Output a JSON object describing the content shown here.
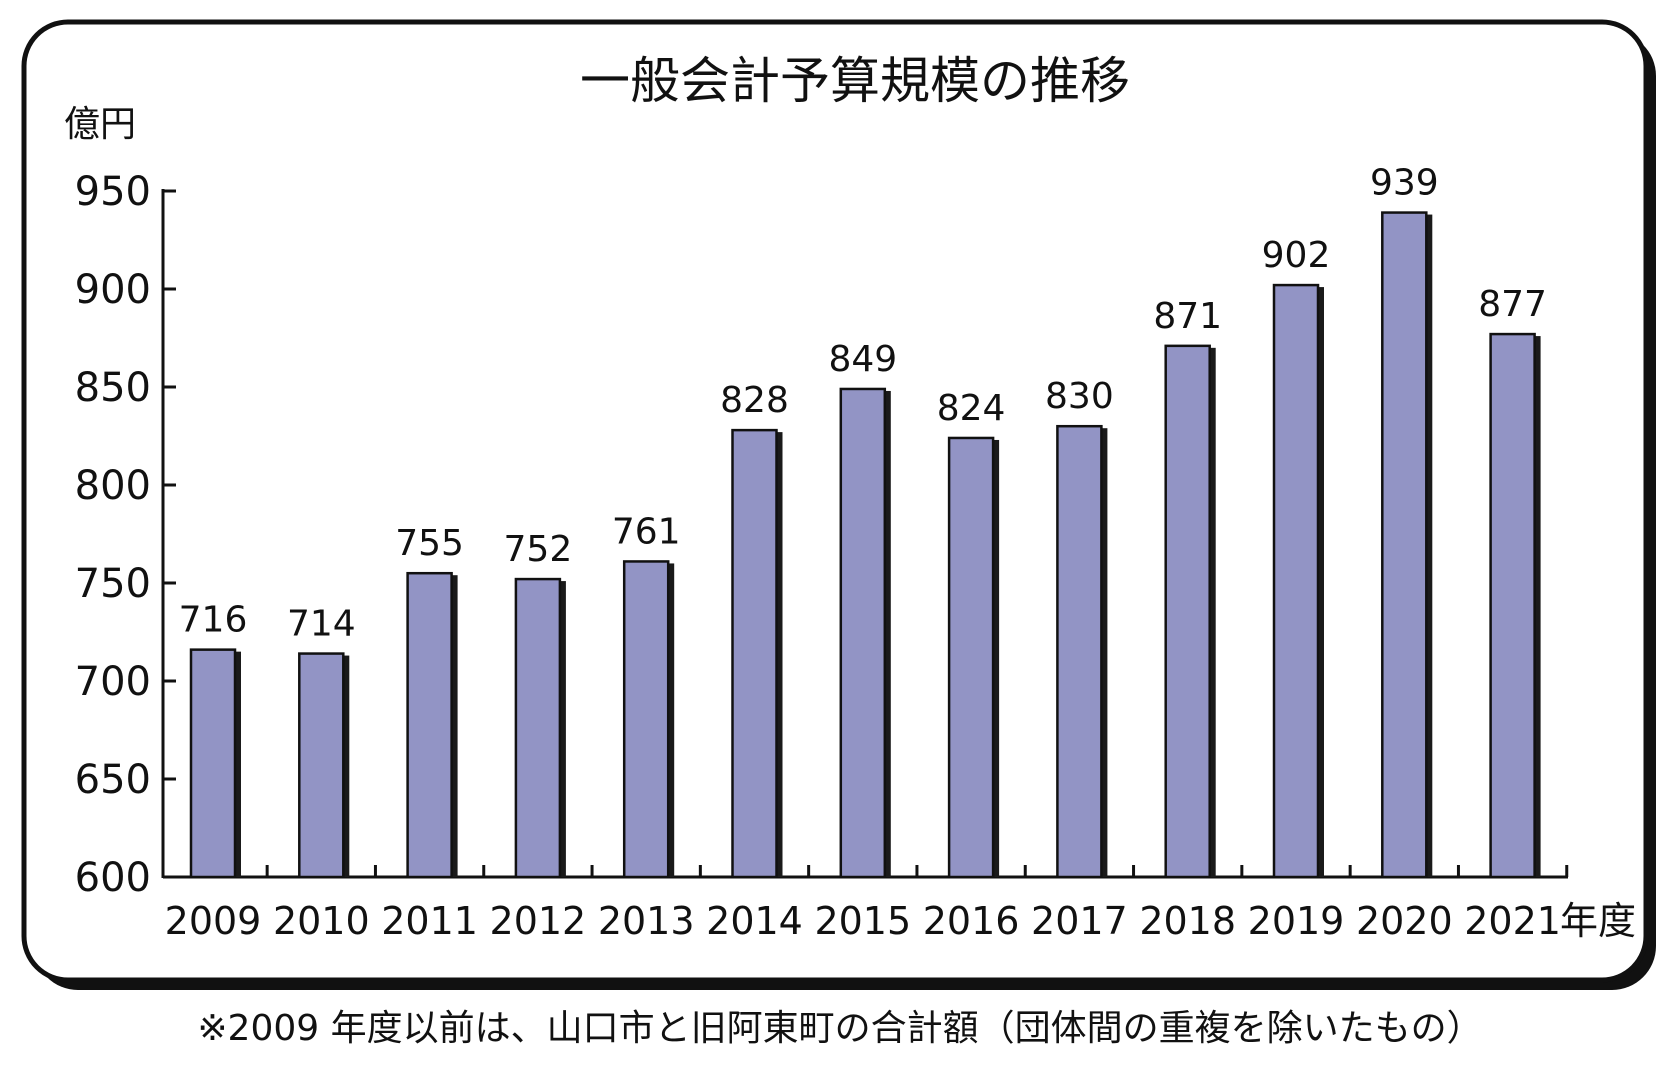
{
  "chart_data": {
    "type": "bar",
    "title": "一般会計予算規模の推移",
    "ylabel": "億円",
    "xlabel": "年度",
    "categories": [
      "2009",
      "2010",
      "2011",
      "2012",
      "2013",
      "2014",
      "2015",
      "2016",
      "2017",
      "2018",
      "2019",
      "2020",
      "2021"
    ],
    "values": [
      716,
      714,
      755,
      752,
      761,
      828,
      849,
      824,
      830,
      871,
      902,
      939,
      877
    ],
    "data_labels": [
      "716",
      "714",
      "755",
      "752",
      "761",
      "828",
      "849",
      "824",
      "830",
      "871",
      "902",
      "939",
      "877"
    ],
    "ylim": [
      600,
      950
    ],
    "yticks": [
      600,
      650,
      700,
      750,
      800,
      850,
      900,
      950
    ],
    "ytick_labels": [
      "600",
      "650",
      "700",
      "750",
      "800",
      "850",
      "900",
      "950"
    ],
    "grid": false,
    "bar_color": "#9294c5",
    "bar_shadow_color": "#1a1a1a",
    "frame_color": "#111111"
  },
  "note": "※2009 年度以前は、山口市と旧阿東町の合計額（団体間の重複を除いたもの）"
}
